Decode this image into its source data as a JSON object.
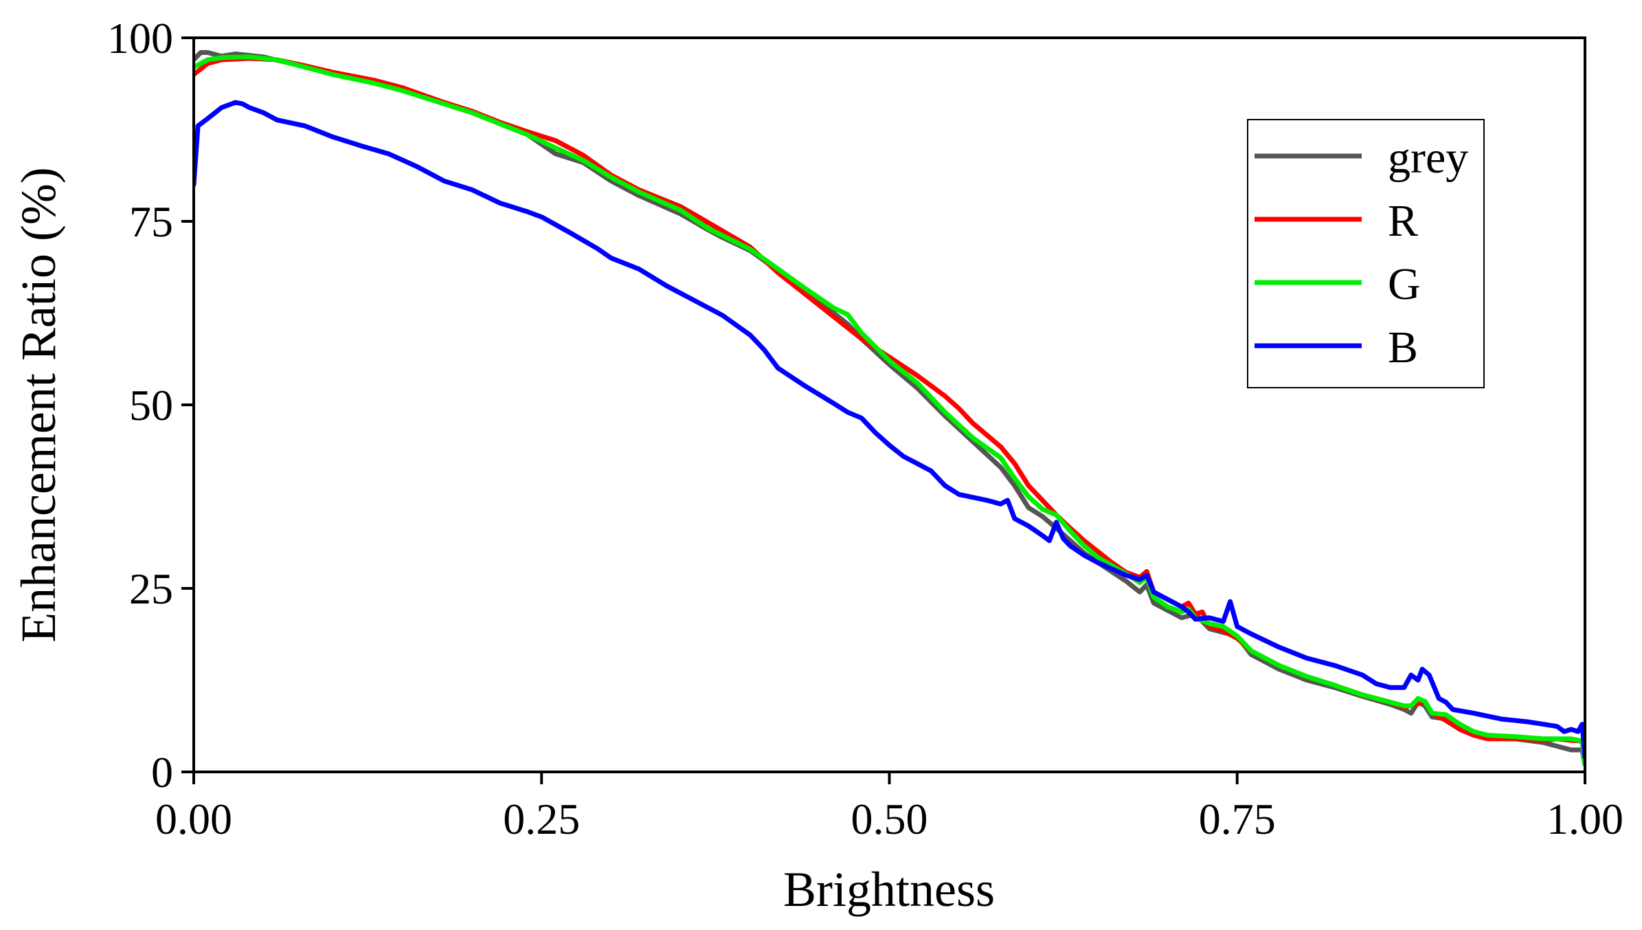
{
  "chart_data": {
    "type": "line",
    "title": "",
    "xlabel": "Brightness",
    "ylabel": "Enhancement Ratio (%)",
    "xlim": [
      0,
      1
    ],
    "ylim": [
      0,
      100
    ],
    "x_ticks": [
      0,
      0.25,
      0.5,
      0.75,
      1.0
    ],
    "x_tick_labels": [
      "0.00",
      "0.25",
      "0.50",
      "0.75",
      "1.00"
    ],
    "y_ticks": [
      0,
      25,
      50,
      75,
      100
    ],
    "y_tick_labels": [
      "0",
      "25",
      "50",
      "75",
      "100"
    ],
    "grid": false,
    "legend_position": "top-right",
    "series": [
      {
        "name": "grey",
        "color": "#555555",
        "points": [
          [
            0.0,
            97
          ],
          [
            0.005,
            98
          ],
          [
            0.01,
            98
          ],
          [
            0.02,
            97.5
          ],
          [
            0.03,
            97.8
          ],
          [
            0.04,
            97.6
          ],
          [
            0.05,
            97.4
          ],
          [
            0.07,
            96.5
          ],
          [
            0.1,
            95.2
          ],
          [
            0.13,
            94
          ],
          [
            0.15,
            93
          ],
          [
            0.18,
            91
          ],
          [
            0.2,
            89.8
          ],
          [
            0.22,
            88.3
          ],
          [
            0.24,
            86.8
          ],
          [
            0.26,
            84.2
          ],
          [
            0.28,
            83
          ],
          [
            0.3,
            80.5
          ],
          [
            0.32,
            78.5
          ],
          [
            0.35,
            76
          ],
          [
            0.37,
            73.8
          ],
          [
            0.38,
            72.8
          ],
          [
            0.4,
            71
          ],
          [
            0.42,
            68.3
          ],
          [
            0.44,
            65.5
          ],
          [
            0.46,
            62.5
          ],
          [
            0.47,
            61
          ],
          [
            0.48,
            59
          ],
          [
            0.5,
            55.5
          ],
          [
            0.52,
            52.3
          ],
          [
            0.54,
            48.5
          ],
          [
            0.56,
            45
          ],
          [
            0.58,
            41.5
          ],
          [
            0.59,
            39
          ],
          [
            0.6,
            36
          ],
          [
            0.61,
            34.8
          ],
          [
            0.62,
            33.2
          ],
          [
            0.63,
            31.5
          ],
          [
            0.64,
            29.8
          ],
          [
            0.65,
            28.5
          ],
          [
            0.67,
            26
          ],
          [
            0.68,
            24.5
          ],
          [
            0.685,
            25.5
          ],
          [
            0.69,
            23
          ],
          [
            0.7,
            22
          ],
          [
            0.71,
            21
          ],
          [
            0.72,
            21.5
          ],
          [
            0.73,
            19.5
          ],
          [
            0.74,
            19
          ],
          [
            0.75,
            18.5
          ],
          [
            0.76,
            16
          ],
          [
            0.78,
            14
          ],
          [
            0.8,
            12.5
          ],
          [
            0.82,
            11.5
          ],
          [
            0.84,
            10.3
          ],
          [
            0.86,
            9.2
          ],
          [
            0.87,
            8.5
          ],
          [
            0.875,
            8
          ],
          [
            0.88,
            9.5
          ],
          [
            0.885,
            9
          ],
          [
            0.89,
            7.5
          ],
          [
            0.9,
            7.2
          ],
          [
            0.91,
            6.2
          ],
          [
            0.92,
            5.2
          ],
          [
            0.93,
            4.7
          ],
          [
            0.95,
            4.5
          ],
          [
            0.97,
            4
          ],
          [
            0.98,
            3.5
          ],
          [
            0.99,
            3
          ],
          [
            0.998,
            3
          ],
          [
            1.0,
            1
          ]
        ]
      },
      {
        "name": "R",
        "color": "#ff0000",
        "points": [
          [
            0.0,
            95
          ],
          [
            0.01,
            96.5
          ],
          [
            0.02,
            97
          ],
          [
            0.04,
            97.2
          ],
          [
            0.06,
            97
          ],
          [
            0.08,
            96.2
          ],
          [
            0.1,
            95.3
          ],
          [
            0.13,
            94.2
          ],
          [
            0.15,
            93.2
          ],
          [
            0.18,
            91.2
          ],
          [
            0.2,
            90
          ],
          [
            0.22,
            88.5
          ],
          [
            0.24,
            87.2
          ],
          [
            0.26,
            86
          ],
          [
            0.28,
            84
          ],
          [
            0.3,
            81.3
          ],
          [
            0.32,
            79.3
          ],
          [
            0.35,
            77
          ],
          [
            0.37,
            74.8
          ],
          [
            0.4,
            71.5
          ],
          [
            0.42,
            68
          ],
          [
            0.44,
            65
          ],
          [
            0.46,
            62
          ],
          [
            0.48,
            59
          ],
          [
            0.5,
            56.5
          ],
          [
            0.52,
            54
          ],
          [
            0.54,
            51.2
          ],
          [
            0.55,
            49.5
          ],
          [
            0.56,
            47.5
          ],
          [
            0.58,
            44.3
          ],
          [
            0.59,
            42
          ],
          [
            0.6,
            39
          ],
          [
            0.61,
            37
          ],
          [
            0.62,
            35
          ],
          [
            0.63,
            33.2
          ],
          [
            0.64,
            31.5
          ],
          [
            0.65,
            30
          ],
          [
            0.66,
            28.5
          ],
          [
            0.67,
            27.2
          ],
          [
            0.68,
            26.5
          ],
          [
            0.685,
            27.3
          ],
          [
            0.69,
            24.5
          ],
          [
            0.7,
            23.5
          ],
          [
            0.71,
            22.5
          ],
          [
            0.715,
            23
          ],
          [
            0.72,
            21.5
          ],
          [
            0.725,
            21.8
          ],
          [
            0.73,
            19.8
          ],
          [
            0.74,
            19.2
          ],
          [
            0.75,
            18.2
          ],
          [
            0.76,
            16.5
          ],
          [
            0.78,
            14.5
          ],
          [
            0.8,
            13
          ],
          [
            0.82,
            11.8
          ],
          [
            0.84,
            10.5
          ],
          [
            0.86,
            9.5
          ],
          [
            0.87,
            8.8
          ],
          [
            0.88,
            9.3
          ],
          [
            0.885,
            9.6
          ],
          [
            0.89,
            8
          ],
          [
            0.9,
            7
          ],
          [
            0.91,
            5.8
          ],
          [
            0.92,
            5
          ],
          [
            0.93,
            4.5
          ],
          [
            0.95,
            4.5
          ],
          [
            0.97,
            4.3
          ],
          [
            0.98,
            4.5
          ],
          [
            0.99,
            4.3
          ],
          [
            0.998,
            4.2
          ],
          [
            1.0,
            1
          ]
        ]
      },
      {
        "name": "G",
        "color": "#00ee00",
        "points": [
          [
            0.0,
            96
          ],
          [
            0.01,
            97
          ],
          [
            0.02,
            97.3
          ],
          [
            0.04,
            97.4
          ],
          [
            0.06,
            97
          ],
          [
            0.08,
            96
          ],
          [
            0.1,
            95
          ],
          [
            0.13,
            93.8
          ],
          [
            0.15,
            92.8
          ],
          [
            0.18,
            91
          ],
          [
            0.2,
            89.8
          ],
          [
            0.22,
            88.3
          ],
          [
            0.24,
            86.8
          ],
          [
            0.26,
            85
          ],
          [
            0.28,
            83.3
          ],
          [
            0.3,
            81
          ],
          [
            0.32,
            79
          ],
          [
            0.35,
            76.5
          ],
          [
            0.37,
            74
          ],
          [
            0.4,
            71.2
          ],
          [
            0.42,
            68.5
          ],
          [
            0.44,
            65.8
          ],
          [
            0.46,
            63.2
          ],
          [
            0.47,
            62.3
          ],
          [
            0.48,
            59.8
          ],
          [
            0.5,
            56
          ],
          [
            0.52,
            53
          ],
          [
            0.54,
            49
          ],
          [
            0.56,
            45.5
          ],
          [
            0.58,
            42.8
          ],
          [
            0.59,
            40
          ],
          [
            0.6,
            37.5
          ],
          [
            0.61,
            35.8
          ],
          [
            0.62,
            35
          ],
          [
            0.63,
            32.8
          ],
          [
            0.64,
            30.8
          ],
          [
            0.65,
            29.2
          ],
          [
            0.67,
            27
          ],
          [
            0.68,
            25.8
          ],
          [
            0.685,
            26.5
          ],
          [
            0.69,
            23.8
          ],
          [
            0.7,
            22.5
          ],
          [
            0.71,
            21.8
          ],
          [
            0.715,
            22.2
          ],
          [
            0.72,
            21
          ],
          [
            0.73,
            20.2
          ],
          [
            0.74,
            19.8
          ],
          [
            0.75,
            18.5
          ],
          [
            0.76,
            16.5
          ],
          [
            0.78,
            14.5
          ],
          [
            0.8,
            13
          ],
          [
            0.82,
            11.8
          ],
          [
            0.84,
            10.5
          ],
          [
            0.86,
            9.5
          ],
          [
            0.87,
            9
          ],
          [
            0.875,
            9
          ],
          [
            0.88,
            10
          ],
          [
            0.885,
            9.6
          ],
          [
            0.89,
            8
          ],
          [
            0.9,
            7.8
          ],
          [
            0.91,
            6.5
          ],
          [
            0.92,
            5.5
          ],
          [
            0.93,
            5
          ],
          [
            0.95,
            4.8
          ],
          [
            0.97,
            4.5
          ],
          [
            0.98,
            4.5
          ],
          [
            0.99,
            4.5
          ],
          [
            0.998,
            4.2
          ],
          [
            1.0,
            1
          ]
        ]
      },
      {
        "name": "B",
        "color": "#0000ff",
        "points": [
          [
            0.0,
            80
          ],
          [
            0.003,
            88
          ],
          [
            0.01,
            89
          ],
          [
            0.02,
            90.5
          ],
          [
            0.03,
            91.2
          ],
          [
            0.035,
            91
          ],
          [
            0.04,
            90.5
          ],
          [
            0.05,
            89.8
          ],
          [
            0.06,
            88.8
          ],
          [
            0.08,
            88
          ],
          [
            0.1,
            86.5
          ],
          [
            0.12,
            85.3
          ],
          [
            0.14,
            84.2
          ],
          [
            0.16,
            82.5
          ],
          [
            0.18,
            80.5
          ],
          [
            0.2,
            79.3
          ],
          [
            0.22,
            77.5
          ],
          [
            0.24,
            76.3
          ],
          [
            0.25,
            75.6
          ],
          [
            0.27,
            73.5
          ],
          [
            0.29,
            71.3
          ],
          [
            0.3,
            70
          ],
          [
            0.32,
            68.5
          ],
          [
            0.34,
            66.2
          ],
          [
            0.36,
            64.2
          ],
          [
            0.38,
            62.2
          ],
          [
            0.4,
            59.5
          ],
          [
            0.41,
            57.5
          ],
          [
            0.42,
            55
          ],
          [
            0.44,
            52.5
          ],
          [
            0.46,
            50.2
          ],
          [
            0.47,
            49
          ],
          [
            0.48,
            48.2
          ],
          [
            0.49,
            46.2
          ],
          [
            0.5,
            44.5
          ],
          [
            0.51,
            43
          ],
          [
            0.52,
            42
          ],
          [
            0.53,
            41
          ],
          [
            0.54,
            39
          ],
          [
            0.55,
            37.8
          ],
          [
            0.57,
            37
          ],
          [
            0.58,
            36.5
          ],
          [
            0.585,
            37
          ],
          [
            0.59,
            34.5
          ],
          [
            0.6,
            33.5
          ],
          [
            0.61,
            32.2
          ],
          [
            0.615,
            31.5
          ],
          [
            0.62,
            34
          ],
          [
            0.625,
            31.8
          ],
          [
            0.63,
            30.8
          ],
          [
            0.64,
            29.5
          ],
          [
            0.65,
            28.5
          ],
          [
            0.67,
            26.8
          ],
          [
            0.68,
            26.2
          ],
          [
            0.685,
            26.8
          ],
          [
            0.69,
            24.5
          ],
          [
            0.7,
            23.5
          ],
          [
            0.71,
            22.5
          ],
          [
            0.715,
            21.8
          ],
          [
            0.72,
            20.8
          ],
          [
            0.73,
            21
          ],
          [
            0.74,
            20.5
          ],
          [
            0.745,
            23.2
          ],
          [
            0.75,
            19.8
          ],
          [
            0.76,
            18.8
          ],
          [
            0.78,
            17
          ],
          [
            0.8,
            15.5
          ],
          [
            0.82,
            14.5
          ],
          [
            0.84,
            13.2
          ],
          [
            0.85,
            12
          ],
          [
            0.86,
            11.5
          ],
          [
            0.87,
            11.5
          ],
          [
            0.875,
            13.2
          ],
          [
            0.88,
            12.5
          ],
          [
            0.883,
            14
          ],
          [
            0.888,
            13.2
          ],
          [
            0.895,
            10
          ],
          [
            0.9,
            9.5
          ],
          [
            0.905,
            8.5
          ],
          [
            0.92,
            8
          ],
          [
            0.94,
            7.2
          ],
          [
            0.95,
            7
          ],
          [
            0.96,
            6.8
          ],
          [
            0.97,
            6.5
          ],
          [
            0.98,
            6.2
          ],
          [
            0.985,
            5.5
          ],
          [
            0.99,
            5.8
          ],
          [
            0.995,
            5.5
          ],
          [
            0.998,
            6.5
          ],
          [
            1.0,
            2
          ]
        ]
      }
    ]
  }
}
